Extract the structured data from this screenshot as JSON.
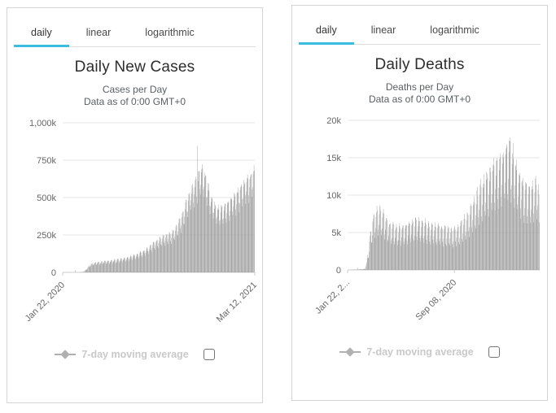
{
  "colors": {
    "accent": "#3bbde2",
    "bar": "#9a9a9a",
    "grid": "#e6e6e6",
    "axis_line": "#cccccc",
    "axis_tick_label": "#666666",
    "title_text": "#2d2d2d",
    "subtitle_text": "#5a5f63",
    "legend_text": "#c9c9c9",
    "legend_marker": "#b1b1b1"
  },
  "panels": [
    {
      "tabs": [
        {
          "label": "daily",
          "active": true
        },
        {
          "label": "linear",
          "active": false
        },
        {
          "label": "logarithmic",
          "active": false
        }
      ],
      "title": "Daily New Cases",
      "subtitle1": "Cases per Day",
      "subtitle2": "Data as of 0:00 GMT+0",
      "legend_label": "7-day moving average",
      "legend_checkbox_checked": false
    },
    {
      "tabs": [
        {
          "label": "daily",
          "active": true
        },
        {
          "label": "linear",
          "active": false
        },
        {
          "label": "logarithmic",
          "active": false
        }
      ],
      "title": "Daily Deaths",
      "subtitle1": "Deaths per Day",
      "subtitle2": "Data as of 0:00 GMT+0",
      "legend_label": "7-day moving average",
      "legend_checkbox_checked": false
    }
  ],
  "chart_data": [
    {
      "type": "bar",
      "title": "Daily New Cases",
      "subtitle": [
        "Cases per Day",
        "Data as of 0:00 GMT+0"
      ],
      "grid": true,
      "legend": {
        "label": "7-day moving average",
        "position": "bottom",
        "series_hidden": true,
        "checkbox_checked": false
      },
      "y_axis": {
        "max_k": 1000,
        "tick_labels_top_to_bottom": [
          "1,000k",
          "750k",
          "500k",
          "250k",
          "0"
        ]
      },
      "x_axis": {
        "ticks": [
          {
            "t": 0.0,
            "label": "Jan 22, 2020"
          },
          {
            "t": 1.0,
            "label": "Mar 12, 2021"
          }
        ]
      },
      "n_days": 415,
      "unit": "thousands per day",
      "envelope_weekly_high_k": [
        [
          0.0,
          0
        ],
        [
          0.06,
          0.2
        ],
        [
          0.095,
          0.8
        ],
        [
          0.11,
          5
        ],
        [
          0.125,
          25
        ],
        [
          0.14,
          48
        ],
        [
          0.155,
          62
        ],
        [
          0.17,
          68
        ],
        [
          0.2,
          72
        ],
        [
          0.24,
          80
        ],
        [
          0.29,
          90
        ],
        [
          0.33,
          100
        ],
        [
          0.37,
          118
        ],
        [
          0.4,
          132
        ],
        [
          0.43,
          155
        ],
        [
          0.46,
          185
        ],
        [
          0.49,
          220
        ],
        [
          0.52,
          245
        ],
        [
          0.55,
          260
        ],
        [
          0.57,
          275
        ],
        [
          0.59,
          305
        ],
        [
          0.61,
          360
        ],
        [
          0.63,
          420
        ],
        [
          0.65,
          500
        ],
        [
          0.665,
          560
        ],
        [
          0.68,
          600
        ],
        [
          0.695,
          640
        ],
        [
          0.71,
          700
        ],
        [
          0.72,
          710
        ],
        [
          0.735,
          680
        ],
        [
          0.75,
          630
        ],
        [
          0.765,
          560
        ],
        [
          0.78,
          495
        ],
        [
          0.8,
          450
        ],
        [
          0.82,
          435
        ],
        [
          0.84,
          455
        ],
        [
          0.86,
          480
        ],
        [
          0.88,
          515
        ],
        [
          0.9,
          545
        ],
        [
          0.93,
          585
        ],
        [
          0.96,
          640
        ],
        [
          0.99,
          690
        ],
        [
          1.0,
          705
        ]
      ],
      "single_day_spikes_k": [
        [
          0.065,
          14
        ],
        [
          0.703,
          845
        ]
      ],
      "weekday_dip_factors": [
        1.0,
        0.97,
        0.8,
        0.72,
        0.83,
        0.93,
        0.99
      ],
      "jitter": 0.04,
      "seed": 3
    },
    {
      "type": "bar",
      "title": "Daily Deaths",
      "subtitle": [
        "Deaths per Day",
        "Data as of 0:00 GMT+0"
      ],
      "grid": true,
      "legend": {
        "label": "7-day moving average",
        "position": "bottom",
        "series_hidden": true,
        "checkbox_checked": false
      },
      "y_axis": {
        "max_k": 20,
        "tick_labels_top_to_bottom": [
          "20k",
          "15k",
          "10k",
          "5k",
          "0"
        ]
      },
      "x_axis": {
        "ticks": [
          {
            "t": 0.0,
            "label": "Jan 22, 2..."
          },
          {
            "t": 0.556,
            "label": "Sep 08, 2020"
          }
        ]
      },
      "n_days": 415,
      "unit": "thousands per day",
      "envelope_weekly_high_k": [
        [
          0.0,
          0
        ],
        [
          0.045,
          0.05
        ],
        [
          0.09,
          0.15
        ],
        [
          0.1,
          1.2
        ],
        [
          0.115,
          4.5
        ],
        [
          0.13,
          7.2
        ],
        [
          0.15,
          8.3
        ],
        [
          0.17,
          8.7
        ],
        [
          0.19,
          7.6
        ],
        [
          0.22,
          6.4
        ],
        [
          0.26,
          5.9
        ],
        [
          0.3,
          6.2
        ],
        [
          0.34,
          6.8
        ],
        [
          0.37,
          7.0
        ],
        [
          0.4,
          6.6
        ],
        [
          0.44,
          6.3
        ],
        [
          0.48,
          6.1
        ],
        [
          0.52,
          5.8
        ],
        [
          0.55,
          5.7
        ],
        [
          0.58,
          6.2
        ],
        [
          0.61,
          7.2
        ],
        [
          0.64,
          8.6
        ],
        [
          0.67,
          10.3
        ],
        [
          0.7,
          12.0
        ],
        [
          0.73,
          13.5
        ],
        [
          0.76,
          14.5
        ],
        [
          0.79,
          15.5
        ],
        [
          0.82,
          16.8
        ],
        [
          0.845,
          17.5
        ],
        [
          0.865,
          16.2
        ],
        [
          0.89,
          14.0
        ],
        [
          0.92,
          12.0
        ],
        [
          0.945,
          11.3
        ],
        [
          0.97,
          12.0
        ],
        [
          0.995,
          12.6
        ],
        [
          1.0,
          7.0
        ]
      ],
      "single_day_spikes_k": [
        [
          0.05,
          0.3
        ]
      ],
      "weekday_dip_factors": [
        1.0,
        0.95,
        0.62,
        0.55,
        0.7,
        0.88,
        0.97
      ],
      "jitter": 0.05,
      "seed": 11
    }
  ]
}
